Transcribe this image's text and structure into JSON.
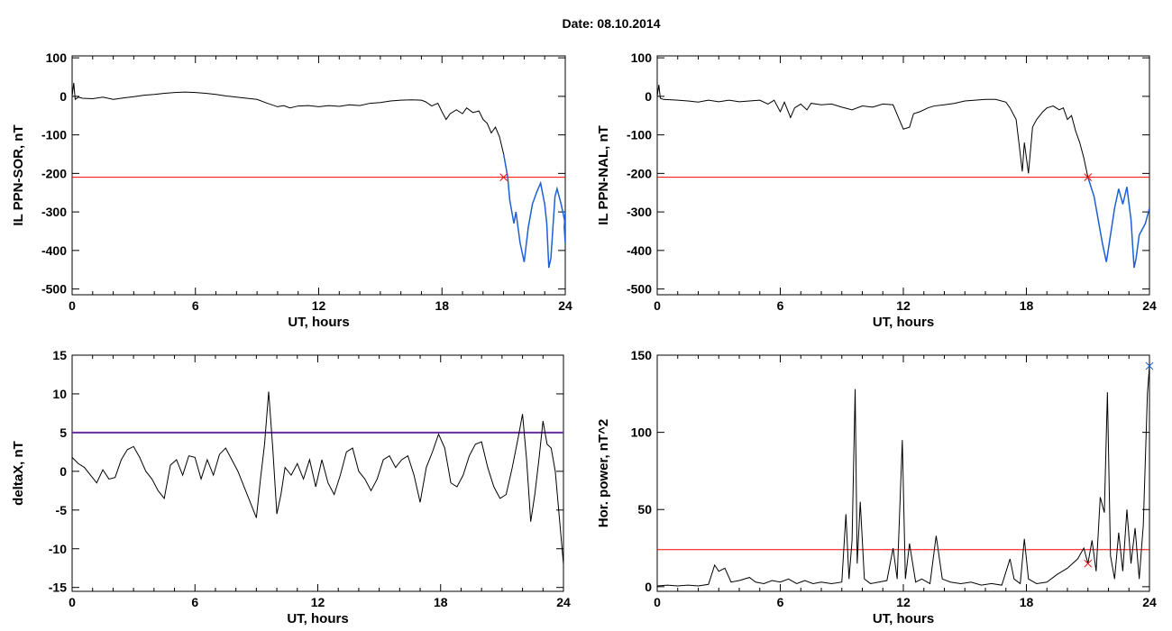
{
  "page": {
    "title": "Date:  08.10.2014"
  },
  "colors": {
    "background": "#ffffff",
    "series": "#000000",
    "threshold": "#ff0000",
    "threshold_purple": "#6a2b9a",
    "highlight": "#1f5fd6",
    "marker_green": "#22aa22"
  },
  "chart_data": [
    {
      "type": "line",
      "id": "sor",
      "xlabel": "UT, hours",
      "ylabel": "IL PPN-SOR, nT",
      "xlim": [
        0,
        24
      ],
      "ylim": [
        -515,
        105
      ],
      "xticks": [
        0,
        6,
        12,
        18,
        24
      ],
      "yticks": [
        100,
        0,
        -100,
        -200,
        -300,
        -400,
        -500
      ],
      "threshold": -210,
      "threshold_color": "#ff0000",
      "marker": {
        "x": 21.0,
        "y": -210
      },
      "highlight_from": 21.0,
      "points": [
        [
          0,
          0
        ],
        [
          0.08,
          35
        ],
        [
          0.15,
          -8
        ],
        [
          0.3,
          -2
        ],
        [
          0.5,
          -5
        ],
        [
          1,
          -6
        ],
        [
          1.5,
          -2
        ],
        [
          2,
          -8
        ],
        [
          2.5,
          -4
        ],
        [
          3,
          -1
        ],
        [
          3.5,
          3
        ],
        [
          4,
          5
        ],
        [
          4.5,
          8
        ],
        [
          5,
          10
        ],
        [
          5.5,
          11
        ],
        [
          6,
          10
        ],
        [
          6.5,
          8
        ],
        [
          7,
          5
        ],
        [
          7.5,
          1
        ],
        [
          8,
          -2
        ],
        [
          8.5,
          -5
        ],
        [
          9,
          -8
        ],
        [
          9.5,
          -18
        ],
        [
          10,
          -27
        ],
        [
          10.3,
          -24
        ],
        [
          10.6,
          -30
        ],
        [
          11,
          -25
        ],
        [
          11.5,
          -24
        ],
        [
          12,
          -27
        ],
        [
          12.5,
          -24
        ],
        [
          13,
          -26
        ],
        [
          13.5,
          -22
        ],
        [
          14,
          -24
        ],
        [
          14.5,
          -18
        ],
        [
          15,
          -16
        ],
        [
          15.5,
          -12
        ],
        [
          16,
          -10
        ],
        [
          16.5,
          -9
        ],
        [
          17,
          -10
        ],
        [
          17.2,
          -14
        ],
        [
          17.5,
          -25
        ],
        [
          17.8,
          -18
        ],
        [
          18,
          -40
        ],
        [
          18.2,
          -60
        ],
        [
          18.4,
          -45
        ],
        [
          18.7,
          -35
        ],
        [
          19,
          -45
        ],
        [
          19.2,
          -30
        ],
        [
          19.5,
          -42
        ],
        [
          19.8,
          -38
        ],
        [
          20,
          -60
        ],
        [
          20.2,
          -70
        ],
        [
          20.4,
          -95
        ],
        [
          20.6,
          -80
        ],
        [
          20.8,
          -105
        ],
        [
          21.0,
          -150
        ],
        [
          21.2,
          -210
        ],
        [
          21.3,
          -270
        ],
        [
          21.5,
          -330
        ],
        [
          21.6,
          -300
        ],
        [
          21.8,
          -380
        ],
        [
          22.0,
          -430
        ],
        [
          22.2,
          -340
        ],
        [
          22.4,
          -280
        ],
        [
          22.6,
          -250
        ],
        [
          22.8,
          -225
        ],
        [
          23.0,
          -280
        ],
        [
          23.1,
          -330
        ],
        [
          23.2,
          -445
        ],
        [
          23.3,
          -420
        ],
        [
          23.5,
          -260
        ],
        [
          23.6,
          -240
        ],
        [
          23.8,
          -280
        ],
        [
          24.0,
          -330
        ],
        [
          24.0,
          -380
        ],
        [
          23.95,
          -340
        ],
        [
          24.0,
          -300
        ]
      ]
    },
    {
      "type": "line",
      "id": "nal",
      "xlabel": "UT, hours",
      "ylabel": "IL PPN-NAL, nT",
      "xlim": [
        0,
        24
      ],
      "ylim": [
        -515,
        105
      ],
      "xticks": [
        0,
        6,
        12,
        18,
        24
      ],
      "yticks": [
        100,
        0,
        -100,
        -200,
        -300,
        -400,
        -500
      ],
      "threshold": -210,
      "threshold_color": "#ff0000",
      "marker": {
        "x": 21.0,
        "y": -210
      },
      "highlight_from": 21.0,
      "points": [
        [
          0,
          0
        ],
        [
          0.08,
          30
        ],
        [
          0.15,
          -5
        ],
        [
          0.3,
          -8
        ],
        [
          1,
          -10
        ],
        [
          1.5,
          -12
        ],
        [
          2,
          -15
        ],
        [
          2.5,
          -10
        ],
        [
          3,
          -14
        ],
        [
          3.5,
          -10
        ],
        [
          4,
          -14
        ],
        [
          4.5,
          -12
        ],
        [
          5,
          -10
        ],
        [
          5.4,
          -20
        ],
        [
          5.7,
          -10
        ],
        [
          6,
          -40
        ],
        [
          6.2,
          -15
        ],
        [
          6.5,
          -55
        ],
        [
          6.7,
          -30
        ],
        [
          7,
          -20
        ],
        [
          7.3,
          -35
        ],
        [
          7.5,
          -18
        ],
        [
          8,
          -22
        ],
        [
          8.5,
          -20
        ],
        [
          9,
          -28
        ],
        [
          9.5,
          -35
        ],
        [
          10,
          -25
        ],
        [
          10.5,
          -28
        ],
        [
          11,
          -20
        ],
        [
          11.5,
          -22
        ],
        [
          11.8,
          -60
        ],
        [
          12.0,
          -85
        ],
        [
          12.3,
          -80
        ],
        [
          12.5,
          -45
        ],
        [
          12.8,
          -40
        ],
        [
          13.2,
          -30
        ],
        [
          13.5,
          -25
        ],
        [
          14,
          -22
        ],
        [
          14.5,
          -18
        ],
        [
          15,
          -12
        ],
        [
          15.5,
          -10
        ],
        [
          16,
          -8
        ],
        [
          16.5,
          -8
        ],
        [
          17,
          -15
        ],
        [
          17.2,
          -30
        ],
        [
          17.5,
          -60
        ],
        [
          17.8,
          -195
        ],
        [
          17.9,
          -120
        ],
        [
          18.1,
          -200
        ],
        [
          18.3,
          -80
        ],
        [
          18.5,
          -60
        ],
        [
          18.8,
          -40
        ],
        [
          19,
          -30
        ],
        [
          19.3,
          -25
        ],
        [
          19.6,
          -35
        ],
        [
          19.8,
          -30
        ],
        [
          20,
          -60
        ],
        [
          20.2,
          -50
        ],
        [
          20.4,
          -90
        ],
        [
          20.6,
          -120
        ],
        [
          20.8,
          -160
        ],
        [
          21.0,
          -210
        ],
        [
          21.3,
          -260
        ],
        [
          21.5,
          -320
        ],
        [
          21.7,
          -380
        ],
        [
          21.9,
          -430
        ],
        [
          22.1,
          -360
        ],
        [
          22.3,
          -290
        ],
        [
          22.5,
          -240
        ],
        [
          22.7,
          -280
        ],
        [
          22.9,
          -235
        ],
        [
          23.1,
          -320
        ],
        [
          23.25,
          -445
        ],
        [
          23.35,
          -420
        ],
        [
          23.5,
          -360
        ],
        [
          23.8,
          -330
        ],
        [
          24.0,
          -290
        ]
      ]
    },
    {
      "type": "line",
      "id": "deltax",
      "xlabel": "UT, hours",
      "ylabel": "deltaX, nT",
      "xlim": [
        0,
        24
      ],
      "ylim": [
        -15.5,
        15
      ],
      "xticks": [
        0,
        6,
        12,
        18,
        24
      ],
      "yticks": [
        15,
        10,
        5,
        0,
        -5,
        -10,
        -15
      ],
      "threshold": 5,
      "threshold_color": "#6a2b9a",
      "points": [
        [
          0,
          1.8
        ],
        [
          0.3,
          1.0
        ],
        [
          0.6,
          0.5
        ],
        [
          0.9,
          -0.5
        ],
        [
          1.2,
          -1.5
        ],
        [
          1.5,
          0.2
        ],
        [
          1.8,
          -1.0
        ],
        [
          2.1,
          -0.8
        ],
        [
          2.4,
          1.5
        ],
        [
          2.7,
          2.8
        ],
        [
          3.0,
          3.2
        ],
        [
          3.3,
          1.8
        ],
        [
          3.6,
          0.0
        ],
        [
          3.9,
          -1.0
        ],
        [
          4.2,
          -2.5
        ],
        [
          4.5,
          -3.5
        ],
        [
          4.8,
          0.8
        ],
        [
          5.1,
          1.5
        ],
        [
          5.4,
          -0.5
        ],
        [
          5.7,
          2.0
        ],
        [
          6.0,
          1.8
        ],
        [
          6.3,
          -1.0
        ],
        [
          6.6,
          1.5
        ],
        [
          6.9,
          -0.5
        ],
        [
          7.2,
          2.2
        ],
        [
          7.5,
          3.0
        ],
        [
          7.8,
          1.5
        ],
        [
          8.1,
          0.0
        ],
        [
          8.4,
          -2.0
        ],
        [
          8.7,
          -4.0
        ],
        [
          9.0,
          -6.0
        ],
        [
          9.2,
          -1.0
        ],
        [
          9.4,
          3.5
        ],
        [
          9.6,
          10.3
        ],
        [
          9.8,
          3.0
        ],
        [
          10.0,
          -5.5
        ],
        [
          10.2,
          -3.0
        ],
        [
          10.4,
          0.5
        ],
        [
          10.7,
          -0.5
        ],
        [
          11.0,
          1.0
        ],
        [
          11.3,
          -1.0
        ],
        [
          11.6,
          1.5
        ],
        [
          11.9,
          -2.0
        ],
        [
          12.2,
          1.5
        ],
        [
          12.5,
          -1.5
        ],
        [
          12.8,
          -3.0
        ],
        [
          13.1,
          -0.5
        ],
        [
          13.4,
          2.5
        ],
        [
          13.7,
          3.0
        ],
        [
          14.0,
          0.0
        ],
        [
          14.3,
          -1.0
        ],
        [
          14.6,
          -2.5
        ],
        [
          14.9,
          -1.0
        ],
        [
          15.2,
          1.5
        ],
        [
          15.5,
          2.0
        ],
        [
          15.8,
          0.5
        ],
        [
          16.1,
          1.5
        ],
        [
          16.4,
          2.0
        ],
        [
          16.7,
          -0.5
        ],
        [
          17.0,
          -4.0
        ],
        [
          17.3,
          0.5
        ],
        [
          17.6,
          2.5
        ],
        [
          17.9,
          4.8
        ],
        [
          18.2,
          3.0
        ],
        [
          18.5,
          -1.5
        ],
        [
          18.8,
          -2.0
        ],
        [
          19.1,
          -0.5
        ],
        [
          19.4,
          2.0
        ],
        [
          19.7,
          3.5
        ],
        [
          20.0,
          3.8
        ],
        [
          20.3,
          0.5
        ],
        [
          20.6,
          -2.0
        ],
        [
          20.9,
          -3.5
        ],
        [
          21.2,
          -3.0
        ],
        [
          21.5,
          0.5
        ],
        [
          21.8,
          4.5
        ],
        [
          22.0,
          7.4
        ],
        [
          22.2,
          1.5
        ],
        [
          22.4,
          -6.5
        ],
        [
          22.6,
          -3.0
        ],
        [
          22.8,
          1.5
        ],
        [
          23.0,
          6.5
        ],
        [
          23.2,
          3.5
        ],
        [
          23.4,
          3.0
        ],
        [
          23.6,
          0.0
        ],
        [
          23.8,
          -6.0
        ],
        [
          24.0,
          -12.0
        ]
      ]
    },
    {
      "type": "line",
      "id": "power",
      "xlabel": "UT, hours",
      "ylabel": "Hor. power, nT^2",
      "xlim": [
        0,
        24
      ],
      "ylim": [
        -3,
        150
      ],
      "xticks": [
        0,
        6,
        12,
        18,
        24
      ],
      "yticks": [
        150,
        100,
        50,
        0
      ],
      "threshold": 24,
      "threshold_color": "#ff0000",
      "marker": {
        "x": 21.0,
        "y": 15
      },
      "end_marker": {
        "x": 24.0,
        "y": 143
      },
      "points": [
        [
          0,
          0.5
        ],
        [
          0.5,
          1
        ],
        [
          1,
          0.5
        ],
        [
          1.5,
          1
        ],
        [
          2,
          0.5
        ],
        [
          2.5,
          1.5
        ],
        [
          2.8,
          14
        ],
        [
          3.0,
          10
        ],
        [
          3.3,
          12
        ],
        [
          3.6,
          3
        ],
        [
          4,
          4
        ],
        [
          4.5,
          6
        ],
        [
          4.8,
          3
        ],
        [
          5.2,
          2
        ],
        [
          5.6,
          4
        ],
        [
          6,
          3
        ],
        [
          6.4,
          5
        ],
        [
          6.8,
          2
        ],
        [
          7.2,
          4
        ],
        [
          7.6,
          2
        ],
        [
          8,
          3
        ],
        [
          8.5,
          2
        ],
        [
          9.0,
          3
        ],
        [
          9.2,
          47
        ],
        [
          9.35,
          5
        ],
        [
          9.5,
          30
        ],
        [
          9.65,
          128
        ],
        [
          9.75,
          15
        ],
        [
          9.9,
          55
        ],
        [
          10.1,
          5
        ],
        [
          10.4,
          2
        ],
        [
          10.8,
          3
        ],
        [
          11.2,
          4
        ],
        [
          11.5,
          25
        ],
        [
          11.7,
          5
        ],
        [
          11.95,
          95
        ],
        [
          12.1,
          5
        ],
        [
          12.3,
          28
        ],
        [
          12.6,
          3
        ],
        [
          12.9,
          5
        ],
        [
          13.3,
          2
        ],
        [
          13.6,
          33
        ],
        [
          13.9,
          5
        ],
        [
          14.3,
          3
        ],
        [
          14.8,
          2
        ],
        [
          15.3,
          3
        ],
        [
          15.8,
          1
        ],
        [
          16.3,
          2
        ],
        [
          16.8,
          1
        ],
        [
          17.2,
          18
        ],
        [
          17.4,
          5
        ],
        [
          17.7,
          2
        ],
        [
          17.9,
          31
        ],
        [
          18.1,
          5
        ],
        [
          18.5,
          2
        ],
        [
          19.0,
          3
        ],
        [
          19.5,
          8
        ],
        [
          20.0,
          12
        ],
        [
          20.5,
          18
        ],
        [
          20.8,
          25
        ],
        [
          21.0,
          15
        ],
        [
          21.2,
          30
        ],
        [
          21.4,
          10
        ],
        [
          21.6,
          58
        ],
        [
          21.8,
          48
        ],
        [
          21.95,
          126
        ],
        [
          22.1,
          20
        ],
        [
          22.3,
          5
        ],
        [
          22.5,
          35
        ],
        [
          22.7,
          10
        ],
        [
          22.9,
          50
        ],
        [
          23.1,
          15
        ],
        [
          23.3,
          38
        ],
        [
          23.5,
          5
        ],
        [
          23.7,
          40
        ],
        [
          23.9,
          125
        ],
        [
          24.0,
          143
        ]
      ]
    }
  ]
}
